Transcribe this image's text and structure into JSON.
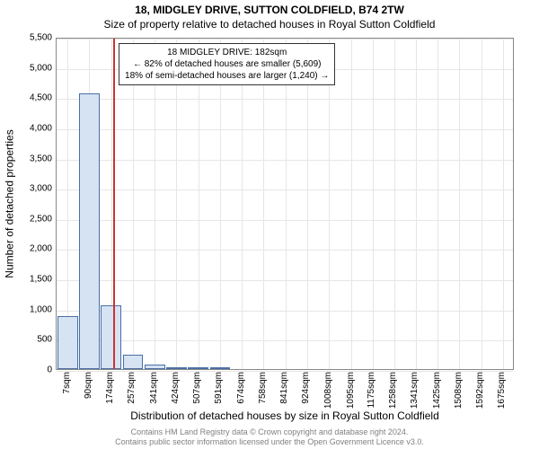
{
  "titles": {
    "line1": "18, MIDGLEY DRIVE, SUTTON COLDFIELD, B74 2TW",
    "line2": "Size of property relative to detached houses in Royal Sutton Coldfield"
  },
  "chart": {
    "type": "bar",
    "x_categories": [
      "7sqm",
      "90sqm",
      "174sqm",
      "257sqm",
      "341sqm",
      "424sqm",
      "507sqm",
      "591sqm",
      "674sqm",
      "758sqm",
      "841sqm",
      "924sqm",
      "1008sqm",
      "1095sqm",
      "1175sqm",
      "1258sqm",
      "1341sqm",
      "1425sqm",
      "1508sqm",
      "1592sqm",
      "1675sqm"
    ],
    "x_values_numeric": [
      7,
      90,
      174,
      257,
      341,
      424,
      507,
      591,
      674,
      758,
      841,
      924,
      1008,
      1095,
      1175,
      1258,
      1341,
      1425,
      1508,
      1592,
      1675
    ],
    "bars": [
      {
        "x": 7,
        "y": 880
      },
      {
        "x": 90,
        "y": 4560
      },
      {
        "x": 174,
        "y": 1060
      },
      {
        "x": 257,
        "y": 240
      },
      {
        "x": 341,
        "y": 80
      },
      {
        "x": 424,
        "y": 30
      },
      {
        "x": 507,
        "y": 30
      },
      {
        "x": 591,
        "y": 20
      }
    ],
    "bar_color": "#d6e3f3",
    "bar_border": "#4a6fa5",
    "bar_width_data": 78,
    "xlim": [
      -35,
      1720
    ],
    "ylim": [
      0,
      5500
    ],
    "ytick_step": 500,
    "yticks": [
      0,
      500,
      1000,
      1500,
      2000,
      2500,
      3000,
      3500,
      4000,
      4500,
      5000,
      5500
    ],
    "xlabel": "Distribution of detached houses by size in Royal Sutton Coldfield",
    "ylabel": "Number of detached properties",
    "grid_color": "#e6e6e6",
    "background_color": "#ffffff",
    "plot_border": "#888888",
    "marker": {
      "x": 182,
      "color": "#cc3333"
    },
    "annotation": {
      "line1": "18 MIDGLEY DRIVE: 182sqm",
      "line2": "← 82% of detached houses are smaller (5,609)",
      "line3": "18% of semi-detached houses are larger (1,240) →",
      "border_color": "#333333",
      "bg_color": "#ffffff",
      "fontsize": 10
    }
  },
  "footer": {
    "line1": "Contains HM Land Registry data © Crown copyright and database right 2024.",
    "line2": "Contains public sector information licensed under the Open Government Licence v3.0.",
    "color": "#808080"
  }
}
